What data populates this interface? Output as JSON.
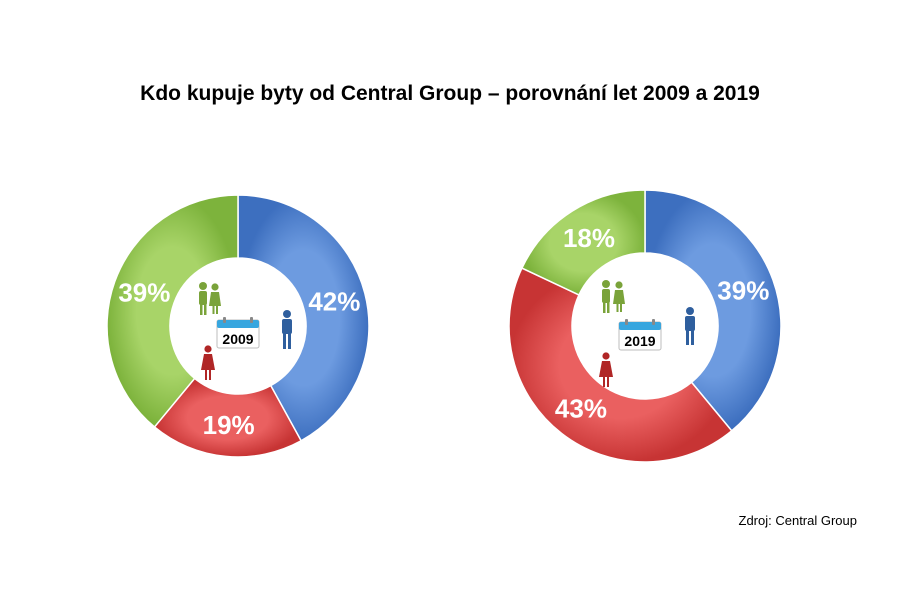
{
  "title": "Kdo kupuje byty od Central Group – porovnání let 2009 a 2019",
  "source": "Zdroj: Central Group",
  "chart_data": [
    {
      "type": "pie",
      "year": "2009",
      "categories": [
        "modrá (muž)",
        "červená (žena)",
        "zelená (pár)"
      ],
      "values": [
        42,
        19,
        39
      ],
      "labels": [
        "42%",
        "19%",
        "39%"
      ],
      "colors": [
        "#4a7fd0",
        "#d9403f",
        "#8dc24a"
      ]
    },
    {
      "type": "pie",
      "year": "2019",
      "categories": [
        "modrá (muž)",
        "červená (žena)",
        "zelená (pár)"
      ],
      "values": [
        39,
        43,
        18
      ],
      "labels": [
        "39%",
        "43%",
        "18%"
      ],
      "colors": [
        "#4a7fd0",
        "#d9403f",
        "#8dc24a"
      ]
    }
  ]
}
